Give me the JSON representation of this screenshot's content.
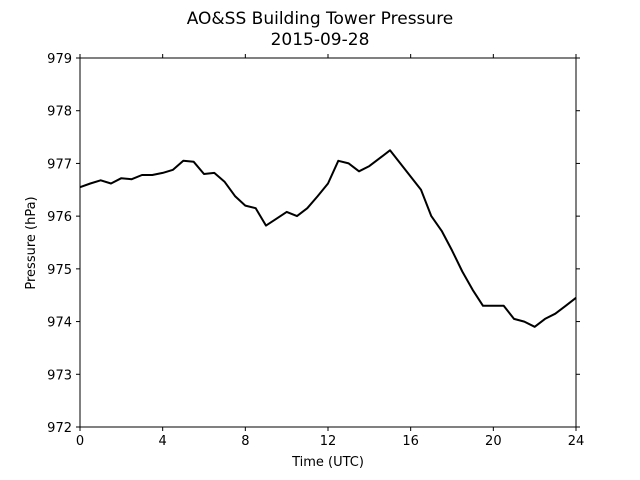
{
  "chart_data": {
    "type": "line",
    "title": "AO&SS Building Tower Pressure",
    "subtitle": "2015-09-28",
    "xlabel": "Time (UTC)",
    "ylabel": "Pressure (hPa)",
    "xlim": [
      0,
      24
    ],
    "ylim": [
      972,
      979
    ],
    "xticks": [
      "0",
      "4",
      "8",
      "12",
      "16",
      "20",
      "24"
    ],
    "yticks": [
      "972",
      "973",
      "974",
      "975",
      "976",
      "977",
      "978",
      "979"
    ],
    "grid": false,
    "line_color": "#000000",
    "series": [
      {
        "x": [
          0,
          0.5,
          1,
          1.5,
          2,
          2.5,
          3,
          3.5,
          4,
          4.5,
          5,
          5.5,
          6,
          6.5,
          7,
          7.5,
          8,
          8.5,
          9,
          9.5,
          10,
          10.5,
          11,
          11.5,
          12,
          12.5,
          13,
          13.5,
          14,
          14.5,
          15,
          15.5,
          16,
          16.5,
          17,
          17.5,
          18,
          18.5,
          19,
          19.5,
          20,
          20.5,
          21,
          21.5,
          22,
          22.5,
          23,
          23.5,
          24
        ],
        "values": [
          976.55,
          976.62,
          976.68,
          976.62,
          976.72,
          976.7,
          976.78,
          976.78,
          976.82,
          976.88,
          977.05,
          977.03,
          976.8,
          976.82,
          976.65,
          976.38,
          976.2,
          976.15,
          975.82,
          975.95,
          976.08,
          976.0,
          976.15,
          976.38,
          976.62,
          977.05,
          977.0,
          976.85,
          976.95,
          977.1,
          977.25,
          977.0,
          976.75,
          976.5,
          976.0,
          975.72,
          975.35,
          974.95,
          974.6,
          974.3,
          974.3,
          974.3,
          974.05,
          974.0,
          973.9,
          974.05,
          974.15,
          974.3,
          974.45
        ]
      }
    ]
  }
}
